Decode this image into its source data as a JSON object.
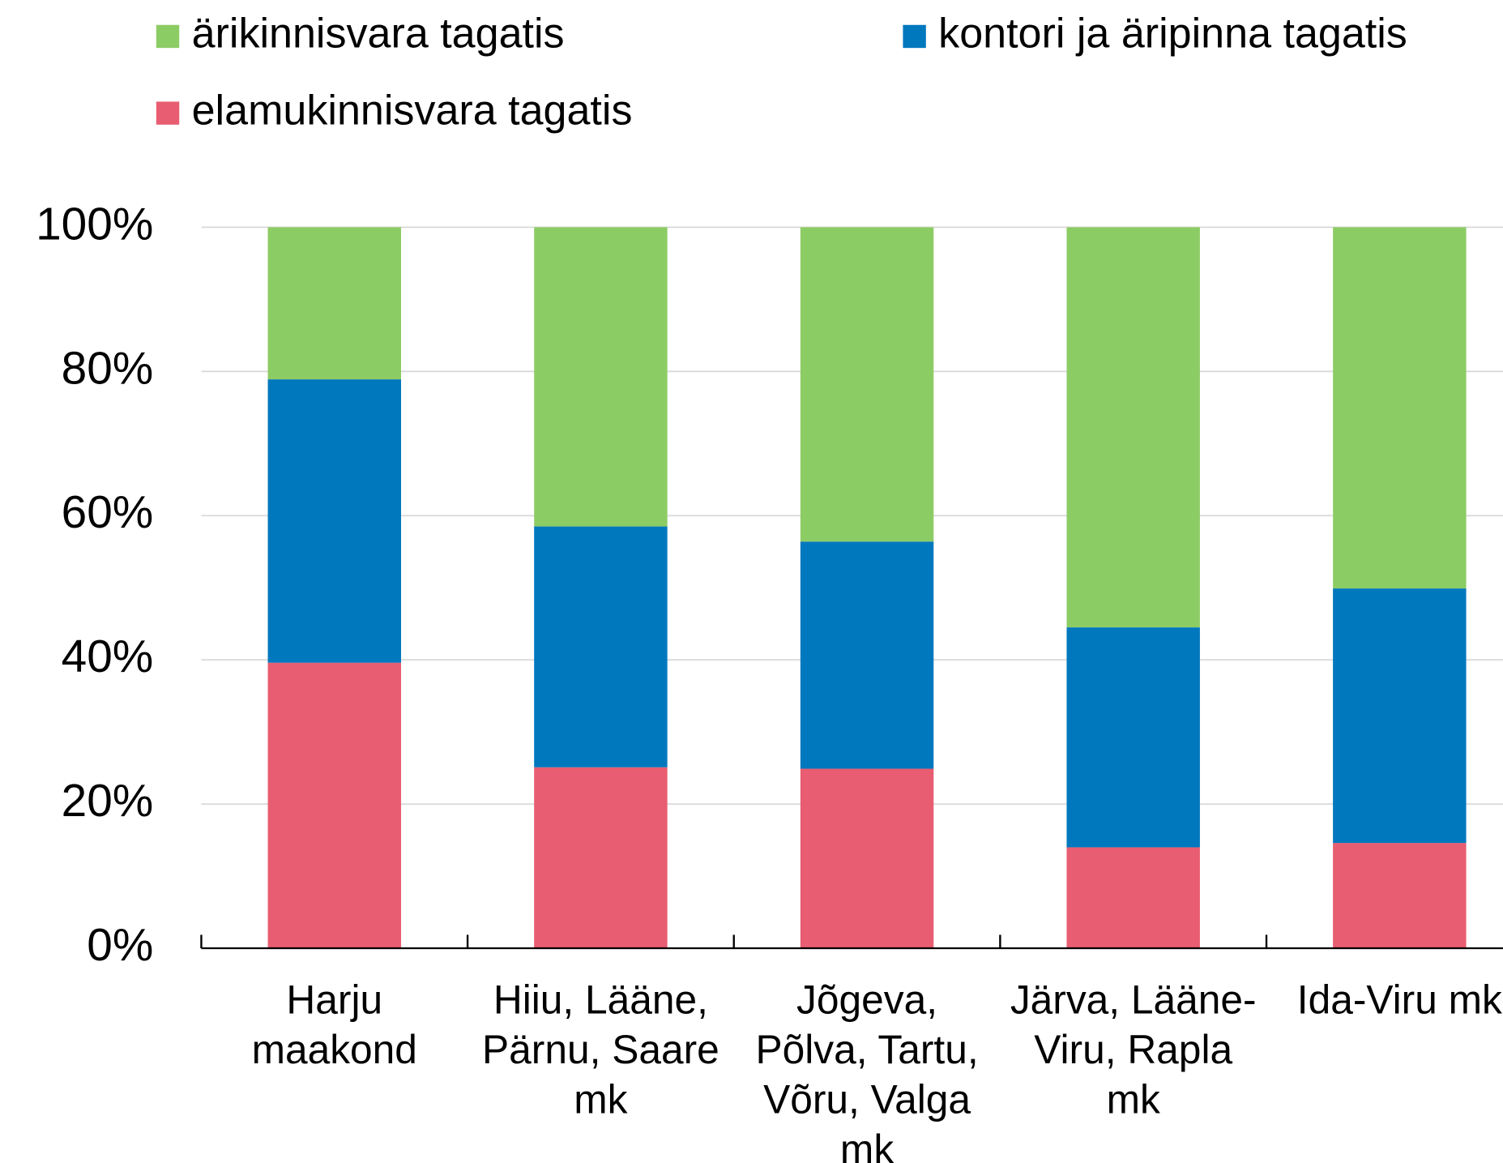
{
  "chart_data": {
    "type": "stacked_bar",
    "categories": [
      "Harju\nmaakond",
      "Hiiu, Lääne,\nPärnu, Saare\nmk",
      "Jõgeva,\nPõlva, Tartu,\nVõru, Valga\nmk",
      "Järva, Lääne-\nViru, Rapla\nmk",
      "Ida-Viru mk"
    ],
    "series": [
      {
        "name": "ärikinnisvara tagatis",
        "color": "#8ccc64",
        "values": [
          21.1,
          41.5,
          43.6,
          55.5,
          50.1
        ]
      },
      {
        "name": "kontori ja äripinna tagatis",
        "color": "#0078be",
        "values": [
          39.3,
          33.4,
          31.5,
          30.5,
          35.3
        ]
      },
      {
        "name": "elamukinnisvara tagatis",
        "color": "#e85d71",
        "values": [
          39.6,
          25.1,
          24.9,
          14.0,
          14.6
        ]
      }
    ],
    "ylim": [
      0,
      100
    ],
    "yticks": [
      {
        "value": 0,
        "label": "0%"
      },
      {
        "value": 20,
        "label": "20%"
      },
      {
        "value": 40,
        "label": "40%"
      },
      {
        "value": 60,
        "label": "60%"
      },
      {
        "value": 80,
        "label": "80%"
      },
      {
        "value": 100,
        "label": "100%"
      }
    ],
    "grid": true
  }
}
